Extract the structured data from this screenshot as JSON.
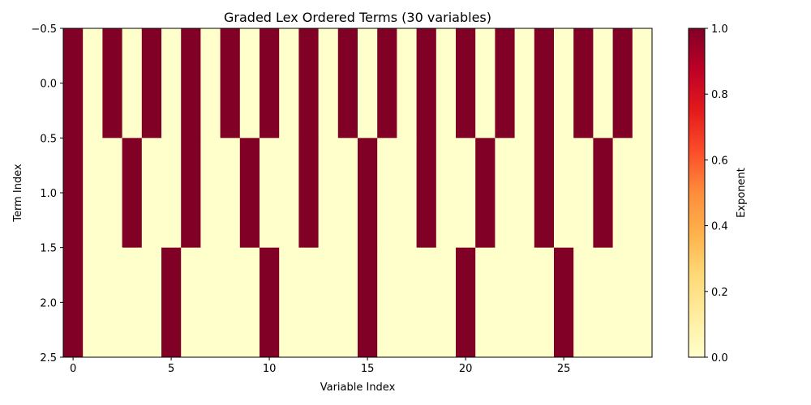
{
  "chart_data": {
    "type": "heatmap",
    "title": "Graded Lex Ordered Terms (30 variables)",
    "xlabel": "Variable Index",
    "ylabel": "Term Index",
    "colorbar_label": "Exponent",
    "colormap": "YlOrRd",
    "color_low": "#ffffcc",
    "color_high": "#800026",
    "xlim": [
      -0.5,
      29.5
    ],
    "ylim": [
      2.5,
      -0.5
    ],
    "xticks": [
      0,
      5,
      10,
      15,
      20,
      25
    ],
    "yticks": [
      -0.5,
      0.0,
      0.5,
      1.0,
      1.5,
      2.0,
      2.5
    ],
    "ytick_labels": [
      "−0.5",
      "0.0",
      "0.5",
      "1.0",
      "1.5",
      "2.0",
      "2.5"
    ],
    "colorbar_ticks": [
      0.0,
      0.2,
      0.4,
      0.6,
      0.8,
      1.0
    ],
    "colorbar_tick_labels": [
      "0.0",
      "0.2",
      "0.4",
      "0.6",
      "0.8",
      "1.0"
    ],
    "vmin": 0.0,
    "vmax": 1.0,
    "values": [
      [
        1,
        0,
        1,
        0,
        1,
        0,
        1,
        0,
        1,
        0,
        1,
        0,
        1,
        0,
        1,
        0,
        1,
        0,
        1,
        0,
        1,
        0,
        1,
        0,
        1,
        0,
        1,
        0,
        1,
        0
      ],
      [
        1,
        0,
        0,
        1,
        0,
        0,
        1,
        0,
        0,
        1,
        0,
        0,
        1,
        0,
        0,
        1,
        0,
        0,
        1,
        0,
        0,
        1,
        0,
        0,
        1,
        0,
        0,
        1,
        0,
        0
      ],
      [
        1,
        0,
        0,
        0,
        0,
        1,
        0,
        0,
        0,
        0,
        1,
        0,
        0,
        0,
        0,
        1,
        0,
        0,
        0,
        0,
        1,
        0,
        0,
        0,
        0,
        1,
        0,
        0,
        0,
        0
      ]
    ]
  }
}
